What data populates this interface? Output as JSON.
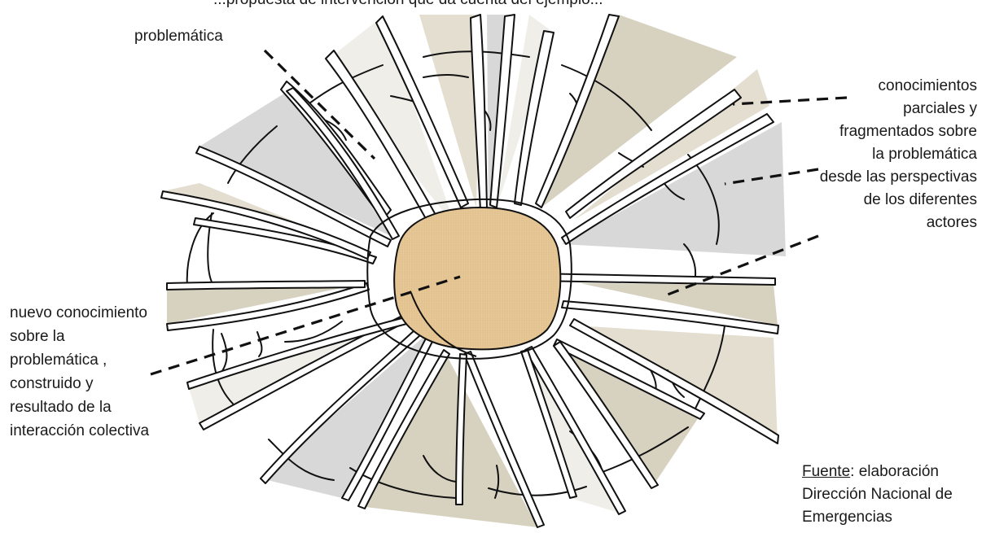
{
  "top_fragment": "...propuesta de intervención que da cuenta del ejemplo...",
  "labels": {
    "problematica": "problemática",
    "fragmented_knowledge": [
      "conocimientos",
      "parciales y",
      "fragmentados sobre",
      "la problemática",
      "desde las perspectivas",
      "de los diferentes",
      "actores"
    ],
    "new_knowledge": [
      "nuevo conocimiento",
      "sobre la",
      "problemática ,",
      "construido y",
      "resultado de la",
      "interacción colectiva"
    ]
  },
  "source": {
    "label": "Fuente",
    "text": ": elaboración",
    "lines": [
      "Dirección Nacional de",
      "Emergencias"
    ]
  },
  "colors": {
    "core": "#e7c99a",
    "core_texture": "#d9b47a",
    "shade_light": "#efeee9",
    "shade_beige": "#e3ded0",
    "shade_tan": "#d7d1c0",
    "shade_gray": "#d8d8d8",
    "stroke": "#111111"
  }
}
